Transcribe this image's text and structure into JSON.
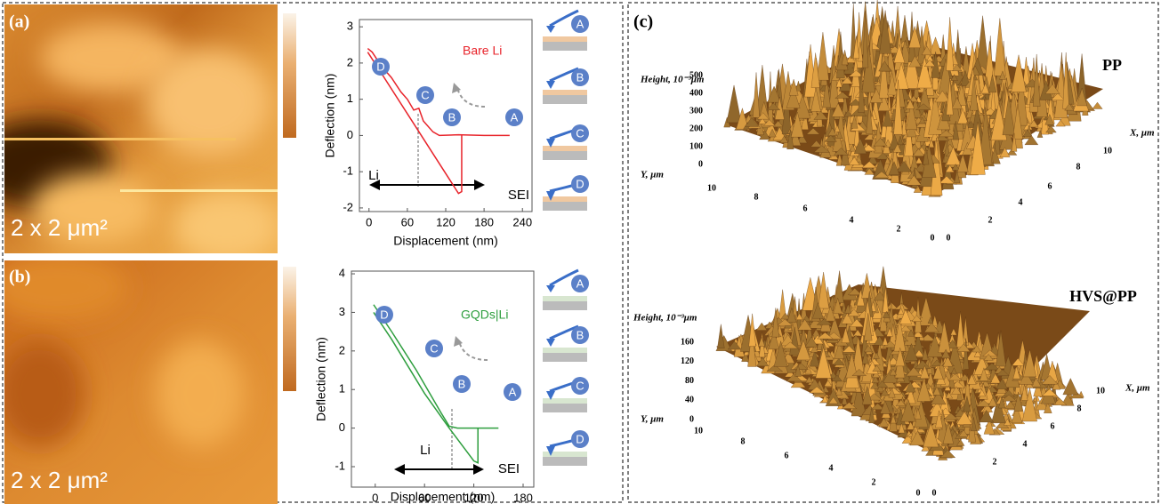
{
  "chart_data": [
    {
      "type": "line",
      "x_label": "Displacement (nm)",
      "y_label": "Deflection (nm)",
      "xlim": [
        -15,
        255
      ],
      "xticks": [
        0,
        60,
        120,
        180,
        240
      ],
      "ylim": [
        -2.1,
        3.2
      ],
      "yticks": [
        -2,
        -1,
        0,
        1,
        2,
        3
      ],
      "series": [
        {
          "name": "Bare Li",
          "color": "#e8232a",
          "x": [
            -2,
            5,
            20,
            35,
            50,
            60,
            70,
            78,
            85,
            100,
            110,
            140,
            180,
            220
          ],
          "values": [
            2.4,
            2.3,
            1.9,
            1.6,
            1.2,
            1.0,
            0.7,
            0.75,
            0.4,
            0.1,
            0.0,
            0.02,
            0.0,
            0.0
          ]
        },
        {
          "color": "#e8232a",
          "x": [
            145,
            145,
            140,
            100,
            60,
            20,
            -2
          ],
          "values": [
            0,
            -1.55,
            -1.6,
            -0.5,
            0.6,
            1.7,
            2.3
          ]
        }
      ],
      "annotations": [
        "D",
        "C",
        "B",
        "A",
        "Li",
        "SEI"
      ]
    },
    {
      "type": "line",
      "x_label": "Displacement (nm)",
      "y_label": "Deflection (nm)",
      "xlim": [
        -29,
        193
      ],
      "xticks": [
        0,
        60,
        120,
        180
      ],
      "ylim": [
        -1.53,
        4.07
      ],
      "yticks": [
        -1,
        0,
        1,
        2,
        3,
        4
      ],
      "series": [
        {
          "name": "GQDs|Li",
          "color": "#2e9e3e",
          "x": [
            -2,
            20,
            50,
            80,
            90,
            100,
            130,
            150
          ],
          "values": [
            3.2,
            2.5,
            1.5,
            0.4,
            0.05,
            0.0,
            0.0,
            0.0
          ]
        },
        {
          "color": "#2e9e3e",
          "x": [
            125,
            125,
            120,
            90,
            60,
            20,
            -2
          ],
          "values": [
            0,
            -0.9,
            -0.85,
            0.0,
            0.9,
            2.3,
            3.0
          ]
        }
      ],
      "annotations": [
        "D",
        "C",
        "B",
        "A",
        "Li",
        "SEI"
      ]
    }
  ],
  "afm_images": [
    {
      "label": "(a)",
      "scale": "2 x 2 μm²"
    },
    {
      "label": "(b)",
      "scale": "2 x 2 μm²"
    }
  ],
  "schematics": [
    [
      "A",
      "B",
      "C",
      "D"
    ],
    [
      "A",
      "B",
      "C",
      "D"
    ]
  ],
  "panel_c": {
    "label": "(c)",
    "plots": [
      {
        "title": "PP",
        "z_label": "Height, 10⁻³μm",
        "x_label": "X, μm",
        "y_label": "Y, μm",
        "z_ticks": [
          "500",
          "400",
          "300",
          "200",
          "100",
          "0"
        ],
        "y_ticks": [
          "10",
          "8",
          "6",
          "4",
          "2",
          "0"
        ],
        "x_ticks": [
          "0",
          "2",
          "4",
          "6",
          "8",
          "10"
        ]
      },
      {
        "title": "HVS@PP",
        "z_label": "Height, 10⁻³μm",
        "x_label": "X, μm",
        "y_label": "Y, μm",
        "z_ticks": [
          "160",
          "120",
          "80",
          "40",
          "0"
        ],
        "y_ticks": [
          "10",
          "8",
          "6",
          "4",
          "2",
          "0"
        ],
        "x_ticks": [
          "0",
          "2",
          "4",
          "6",
          "8",
          "10"
        ]
      }
    ]
  }
}
